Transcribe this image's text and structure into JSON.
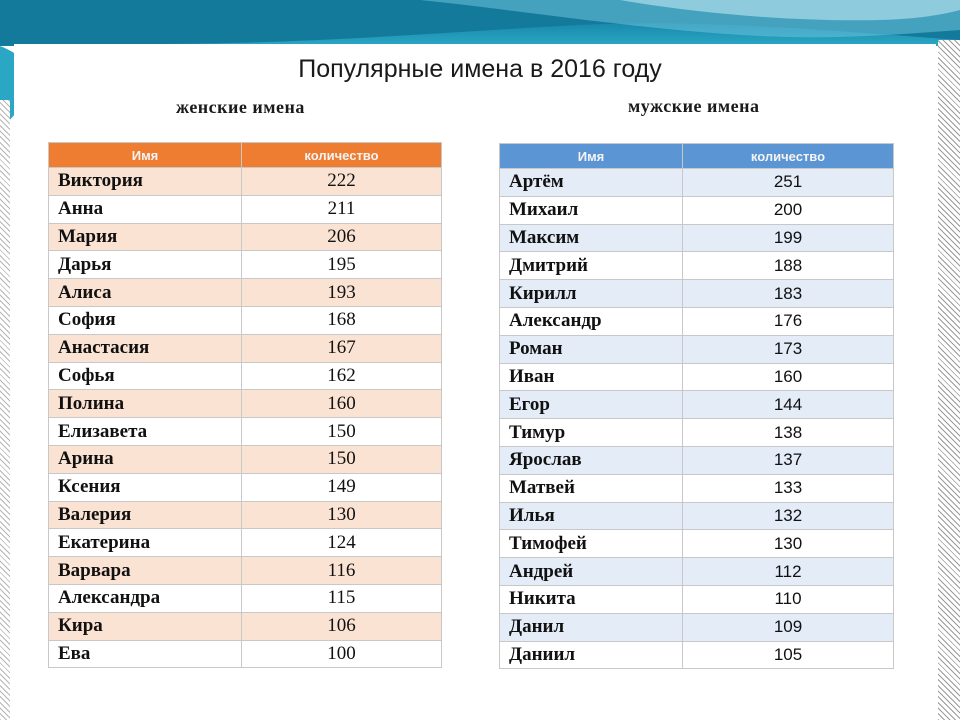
{
  "title": "Популярные имена в 2016 году",
  "female": {
    "heading": "женские имена",
    "columns": [
      "Имя",
      "количество"
    ],
    "accent_color": "#ee7d32",
    "rows": [
      {
        "name": "Виктория",
        "count": "222"
      },
      {
        "name": "Анна",
        "count": "211"
      },
      {
        "name": "Мария",
        "count": "206"
      },
      {
        "name": "Дарья",
        "count": "195"
      },
      {
        "name": "Алиса",
        "count": "193"
      },
      {
        "name": "София",
        "count": "168"
      },
      {
        "name": "Анастасия",
        "count": "167"
      },
      {
        "name": "Софья",
        "count": "162"
      },
      {
        "name": "Полина",
        "count": "160"
      },
      {
        "name": "Елизавета",
        "count": "150"
      },
      {
        "name": "Арина",
        "count": "150"
      },
      {
        "name": "Ксения",
        "count": "149"
      },
      {
        "name": "Валерия",
        "count": "130"
      },
      {
        "name": "Екатерина",
        "count": "124"
      },
      {
        "name": "Варвара",
        "count": "116"
      },
      {
        "name": "Александра",
        "count": "115"
      },
      {
        "name": "Кира",
        "count": "106"
      },
      {
        "name": "Ева",
        "count": "100"
      }
    ]
  },
  "male": {
    "heading": "мужские имена",
    "columns": [
      "Имя",
      "количество"
    ],
    "accent_color": "#5b95d4",
    "rows": [
      {
        "name": "Артём",
        "count": "251"
      },
      {
        "name": "Михаил",
        "count": "200"
      },
      {
        "name": "Максим",
        "count": "199"
      },
      {
        "name": "Дмитрий",
        "count": "188"
      },
      {
        "name": "Кирилл",
        "count": "183"
      },
      {
        "name": "Александр",
        "count": "176"
      },
      {
        "name": "Роман",
        "count": "173"
      },
      {
        "name": "Иван",
        "count": "160"
      },
      {
        "name": "Егор",
        "count": "144"
      },
      {
        "name": "Тимур",
        "count": "138"
      },
      {
        "name": "Ярослав",
        "count": "137"
      },
      {
        "name": "Матвей",
        "count": "133"
      },
      {
        "name": "Илья",
        "count": "132"
      },
      {
        "name": "Тимофей",
        "count": "130"
      },
      {
        "name": "Андрей",
        "count": "112"
      },
      {
        "name": "Никита",
        "count": "110"
      },
      {
        "name": "Данил",
        "count": "109"
      },
      {
        "name": "Даниил",
        "count": "105"
      }
    ]
  }
}
